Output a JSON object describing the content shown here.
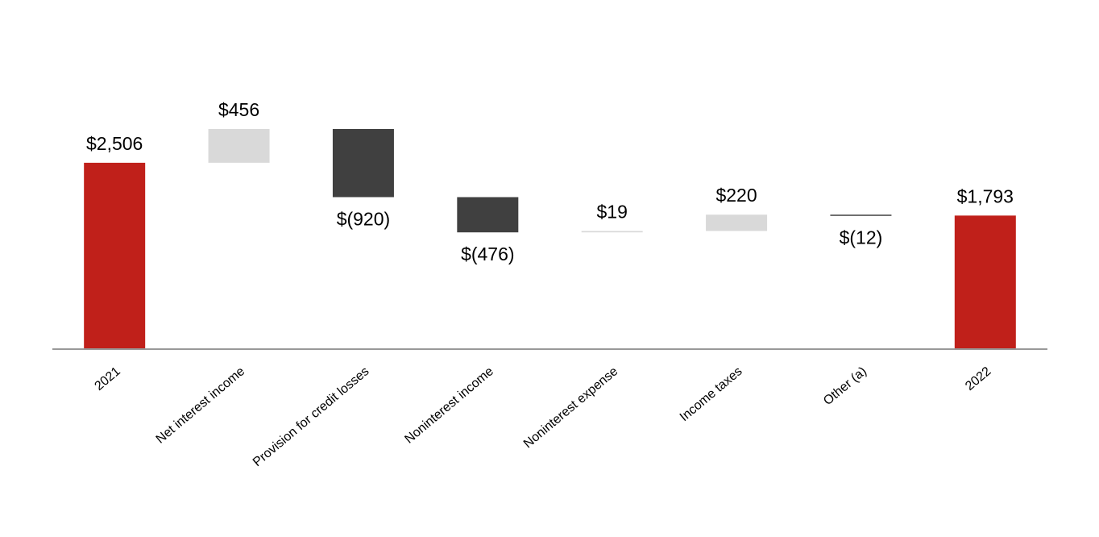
{
  "chart_data": {
    "type": "waterfall",
    "categories": [
      "2021",
      "Net interest income",
      "Provision for credit losses",
      "Noninterest income",
      "Noninterest expense",
      "Income taxes",
      "Other (a)",
      "2022"
    ],
    "measure": [
      "absolute",
      "relative",
      "relative",
      "relative",
      "relative",
      "relative",
      "relative",
      "absolute"
    ],
    "values": [
      2506,
      456,
      -920,
      -476,
      19,
      220,
      -12,
      1793
    ],
    "value_labels": [
      "$2,506",
      "$456",
      "$(920)",
      "$(476)",
      "$19",
      "$220",
      "$(12)",
      "$1,793"
    ],
    "colors": [
      "#c0201a",
      "#d9d9d9",
      "#404040",
      "#404040",
      "#d9d9d9",
      "#d9d9d9",
      "#404040",
      "#c0201a"
    ]
  }
}
